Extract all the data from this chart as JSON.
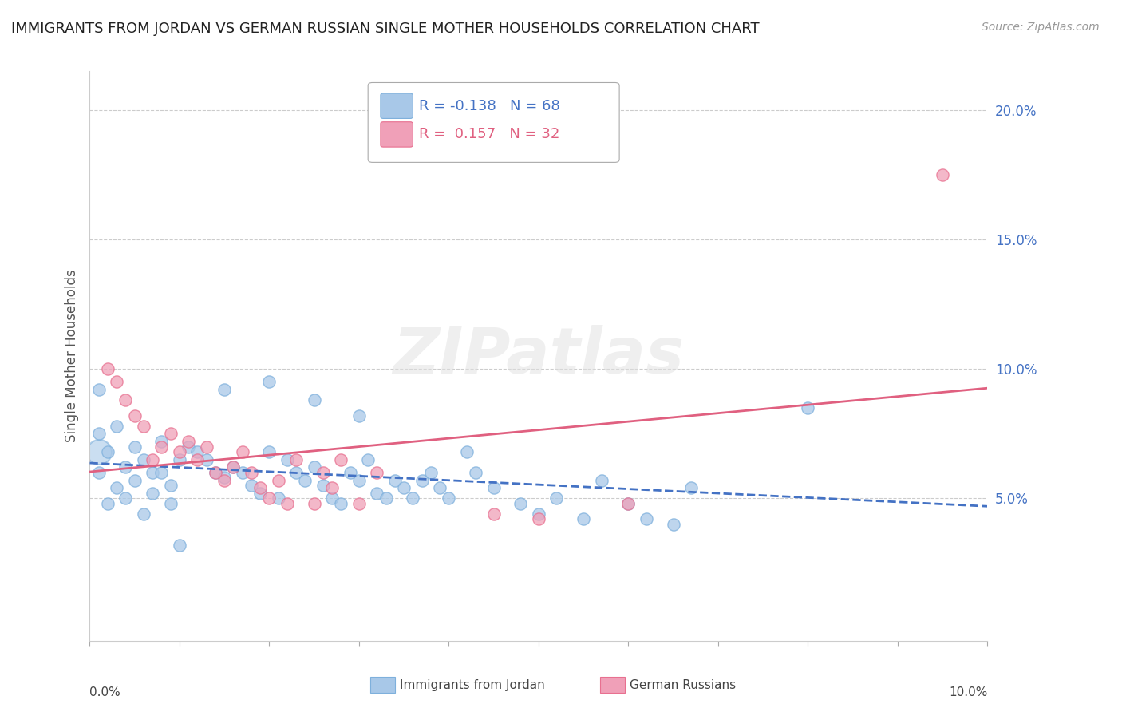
{
  "title": "IMMIGRANTS FROM JORDAN VS GERMAN RUSSIAN SINGLE MOTHER HOUSEHOLDS CORRELATION CHART",
  "source": "Source: ZipAtlas.com",
  "ylabel": "Single Mother Households",
  "xlim": [
    0.0,
    0.1
  ],
  "ylim": [
    -0.005,
    0.215
  ],
  "yticks": [
    0.05,
    0.1,
    0.15,
    0.2
  ],
  "ytick_labels": [
    "5.0%",
    "10.0%",
    "15.0%",
    "20.0%"
  ],
  "legend_R1": "-0.138",
  "legend_N1": "68",
  "legend_R2": "0.157",
  "legend_N2": "32",
  "watermark": "ZIPatlas",
  "blue_color": "#A8C8E8",
  "pink_color": "#F0A0B8",
  "blue_edge_color": "#7EB0DC",
  "pink_edge_color": "#E87090",
  "blue_line_color": "#4472C4",
  "pink_line_color": "#E06080",
  "blue_points": [
    [
      0.001,
      0.075
    ],
    [
      0.002,
      0.068
    ],
    [
      0.003,
      0.078
    ],
    [
      0.004,
      0.062
    ],
    [
      0.005,
      0.07
    ],
    [
      0.006,
      0.065
    ],
    [
      0.007,
      0.06
    ],
    [
      0.008,
      0.072
    ],
    [
      0.009,
      0.055
    ],
    [
      0.01,
      0.065
    ],
    [
      0.011,
      0.07
    ],
    [
      0.012,
      0.068
    ],
    [
      0.013,
      0.065
    ],
    [
      0.014,
      0.06
    ],
    [
      0.015,
      0.058
    ],
    [
      0.016,
      0.062
    ],
    [
      0.017,
      0.06
    ],
    [
      0.018,
      0.055
    ],
    [
      0.019,
      0.052
    ],
    [
      0.02,
      0.068
    ],
    [
      0.021,
      0.05
    ],
    [
      0.022,
      0.065
    ],
    [
      0.023,
      0.06
    ],
    [
      0.024,
      0.057
    ],
    [
      0.025,
      0.062
    ],
    [
      0.026,
      0.055
    ],
    [
      0.027,
      0.05
    ],
    [
      0.028,
      0.048
    ],
    [
      0.029,
      0.06
    ],
    [
      0.03,
      0.057
    ],
    [
      0.031,
      0.065
    ],
    [
      0.032,
      0.052
    ],
    [
      0.033,
      0.05
    ],
    [
      0.034,
      0.057
    ],
    [
      0.035,
      0.054
    ],
    [
      0.036,
      0.05
    ],
    [
      0.037,
      0.057
    ],
    [
      0.038,
      0.06
    ],
    [
      0.039,
      0.054
    ],
    [
      0.04,
      0.05
    ],
    [
      0.042,
      0.068
    ],
    [
      0.043,
      0.06
    ],
    [
      0.045,
      0.054
    ],
    [
      0.048,
      0.048
    ],
    [
      0.05,
      0.044
    ],
    [
      0.052,
      0.05
    ],
    [
      0.055,
      0.042
    ],
    [
      0.057,
      0.057
    ],
    [
      0.06,
      0.048
    ],
    [
      0.062,
      0.042
    ],
    [
      0.065,
      0.04
    ],
    [
      0.067,
      0.054
    ],
    [
      0.001,
      0.06
    ],
    [
      0.002,
      0.048
    ],
    [
      0.003,
      0.054
    ],
    [
      0.004,
      0.05
    ],
    [
      0.005,
      0.057
    ],
    [
      0.006,
      0.044
    ],
    [
      0.007,
      0.052
    ],
    [
      0.008,
      0.06
    ],
    [
      0.009,
      0.048
    ],
    [
      0.01,
      0.032
    ],
    [
      0.015,
      0.092
    ],
    [
      0.02,
      0.095
    ],
    [
      0.025,
      0.088
    ],
    [
      0.03,
      0.082
    ],
    [
      0.08,
      0.085
    ],
    [
      0.001,
      0.092
    ]
  ],
  "pink_points": [
    [
      0.002,
      0.1
    ],
    [
      0.003,
      0.095
    ],
    [
      0.004,
      0.088
    ],
    [
      0.005,
      0.082
    ],
    [
      0.006,
      0.078
    ],
    [
      0.007,
      0.065
    ],
    [
      0.008,
      0.07
    ],
    [
      0.009,
      0.075
    ],
    [
      0.01,
      0.068
    ],
    [
      0.011,
      0.072
    ],
    [
      0.012,
      0.065
    ],
    [
      0.013,
      0.07
    ],
    [
      0.014,
      0.06
    ],
    [
      0.015,
      0.057
    ],
    [
      0.016,
      0.062
    ],
    [
      0.017,
      0.068
    ],
    [
      0.018,
      0.06
    ],
    [
      0.019,
      0.054
    ],
    [
      0.02,
      0.05
    ],
    [
      0.021,
      0.057
    ],
    [
      0.022,
      0.048
    ],
    [
      0.023,
      0.065
    ],
    [
      0.025,
      0.048
    ],
    [
      0.026,
      0.06
    ],
    [
      0.027,
      0.054
    ],
    [
      0.028,
      0.065
    ],
    [
      0.03,
      0.048
    ],
    [
      0.032,
      0.06
    ],
    [
      0.045,
      0.044
    ],
    [
      0.05,
      0.042
    ],
    [
      0.06,
      0.048
    ],
    [
      0.095,
      0.175
    ]
  ]
}
